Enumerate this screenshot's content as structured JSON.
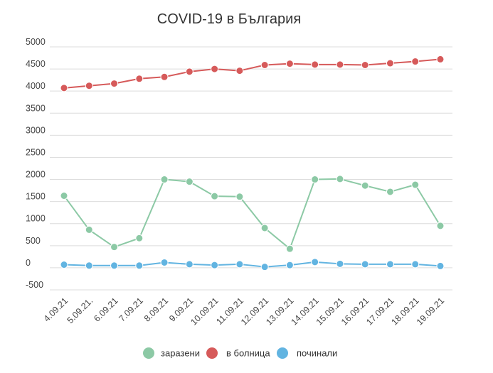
{
  "chart_data": {
    "type": "line",
    "title": "COVID-19 в България",
    "xlabel": "",
    "ylabel": "",
    "categories": [
      "4.09.21",
      "5.09.21.",
      "6.09.21",
      "7.09.21",
      "8.09.21",
      "9.09.21",
      "10.09.21",
      "11.09.21",
      "12.09.21",
      "13.09.21",
      "14.09.21",
      "15.09.21",
      "16.09.21",
      "17.09.21",
      "18.09.21",
      "19.09.21"
    ],
    "ylim": [
      -500,
      5000
    ],
    "yticks": [
      -500,
      0,
      500,
      1000,
      1500,
      2000,
      2500,
      3000,
      3500,
      4000,
      4500,
      5000
    ],
    "grid": true,
    "legend_position": "bottom",
    "series": [
      {
        "name": "заразени",
        "color": "#8cc9a5",
        "values": [
          1630,
          860,
          470,
          670,
          2000,
          1950,
          1620,
          1610,
          900,
          430,
          2000,
          2010,
          1860,
          1720,
          1880,
          950
        ]
      },
      {
        "name": "в болница",
        "color": "#d65a5a",
        "values": [
          4070,
          4120,
          4170,
          4280,
          4320,
          4440,
          4500,
          4460,
          4590,
          4620,
          4600,
          4600,
          4590,
          4630,
          4670,
          4720
        ]
      },
      {
        "name": "починали",
        "color": "#62b4e1",
        "values": [
          70,
          50,
          50,
          50,
          120,
          80,
          60,
          80,
          20,
          60,
          130,
          90,
          80,
          80,
          80,
          40
        ]
      }
    ]
  }
}
